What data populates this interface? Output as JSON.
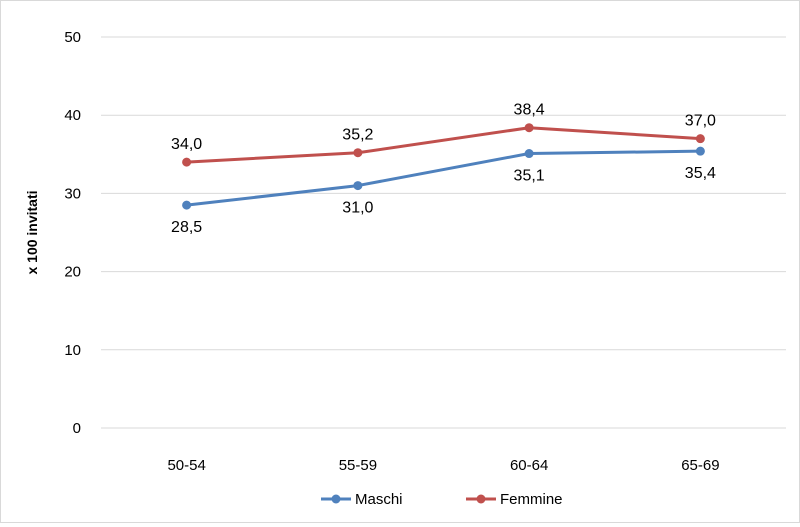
{
  "chart_data": {
    "type": "line",
    "title": "",
    "xlabel": "",
    "ylabel": "x 100 invitati",
    "categories": [
      "50-54",
      "55-59",
      "60-64",
      "65-69"
    ],
    "ylim": [
      0,
      50
    ],
    "yticks": [
      0,
      10,
      20,
      30,
      40,
      50
    ],
    "grid": true,
    "legend_position": "bottom",
    "series": [
      {
        "name": "Maschi",
        "values": [
          28.5,
          31.0,
          35.1,
          35.4
        ],
        "labels": [
          "28,5",
          "31,0",
          "35,1",
          "35,4"
        ],
        "color": "#4f81bd",
        "label_position": [
          "below",
          "below",
          "below",
          "below"
        ]
      },
      {
        "name": "Femmine",
        "values": [
          34.0,
          35.2,
          38.4,
          37.0
        ],
        "labels": [
          "34,0",
          "35,2",
          "38,4",
          "37,0"
        ],
        "color": "#c0504d",
        "label_position": [
          "above",
          "above",
          "above",
          "above"
        ]
      }
    ]
  }
}
